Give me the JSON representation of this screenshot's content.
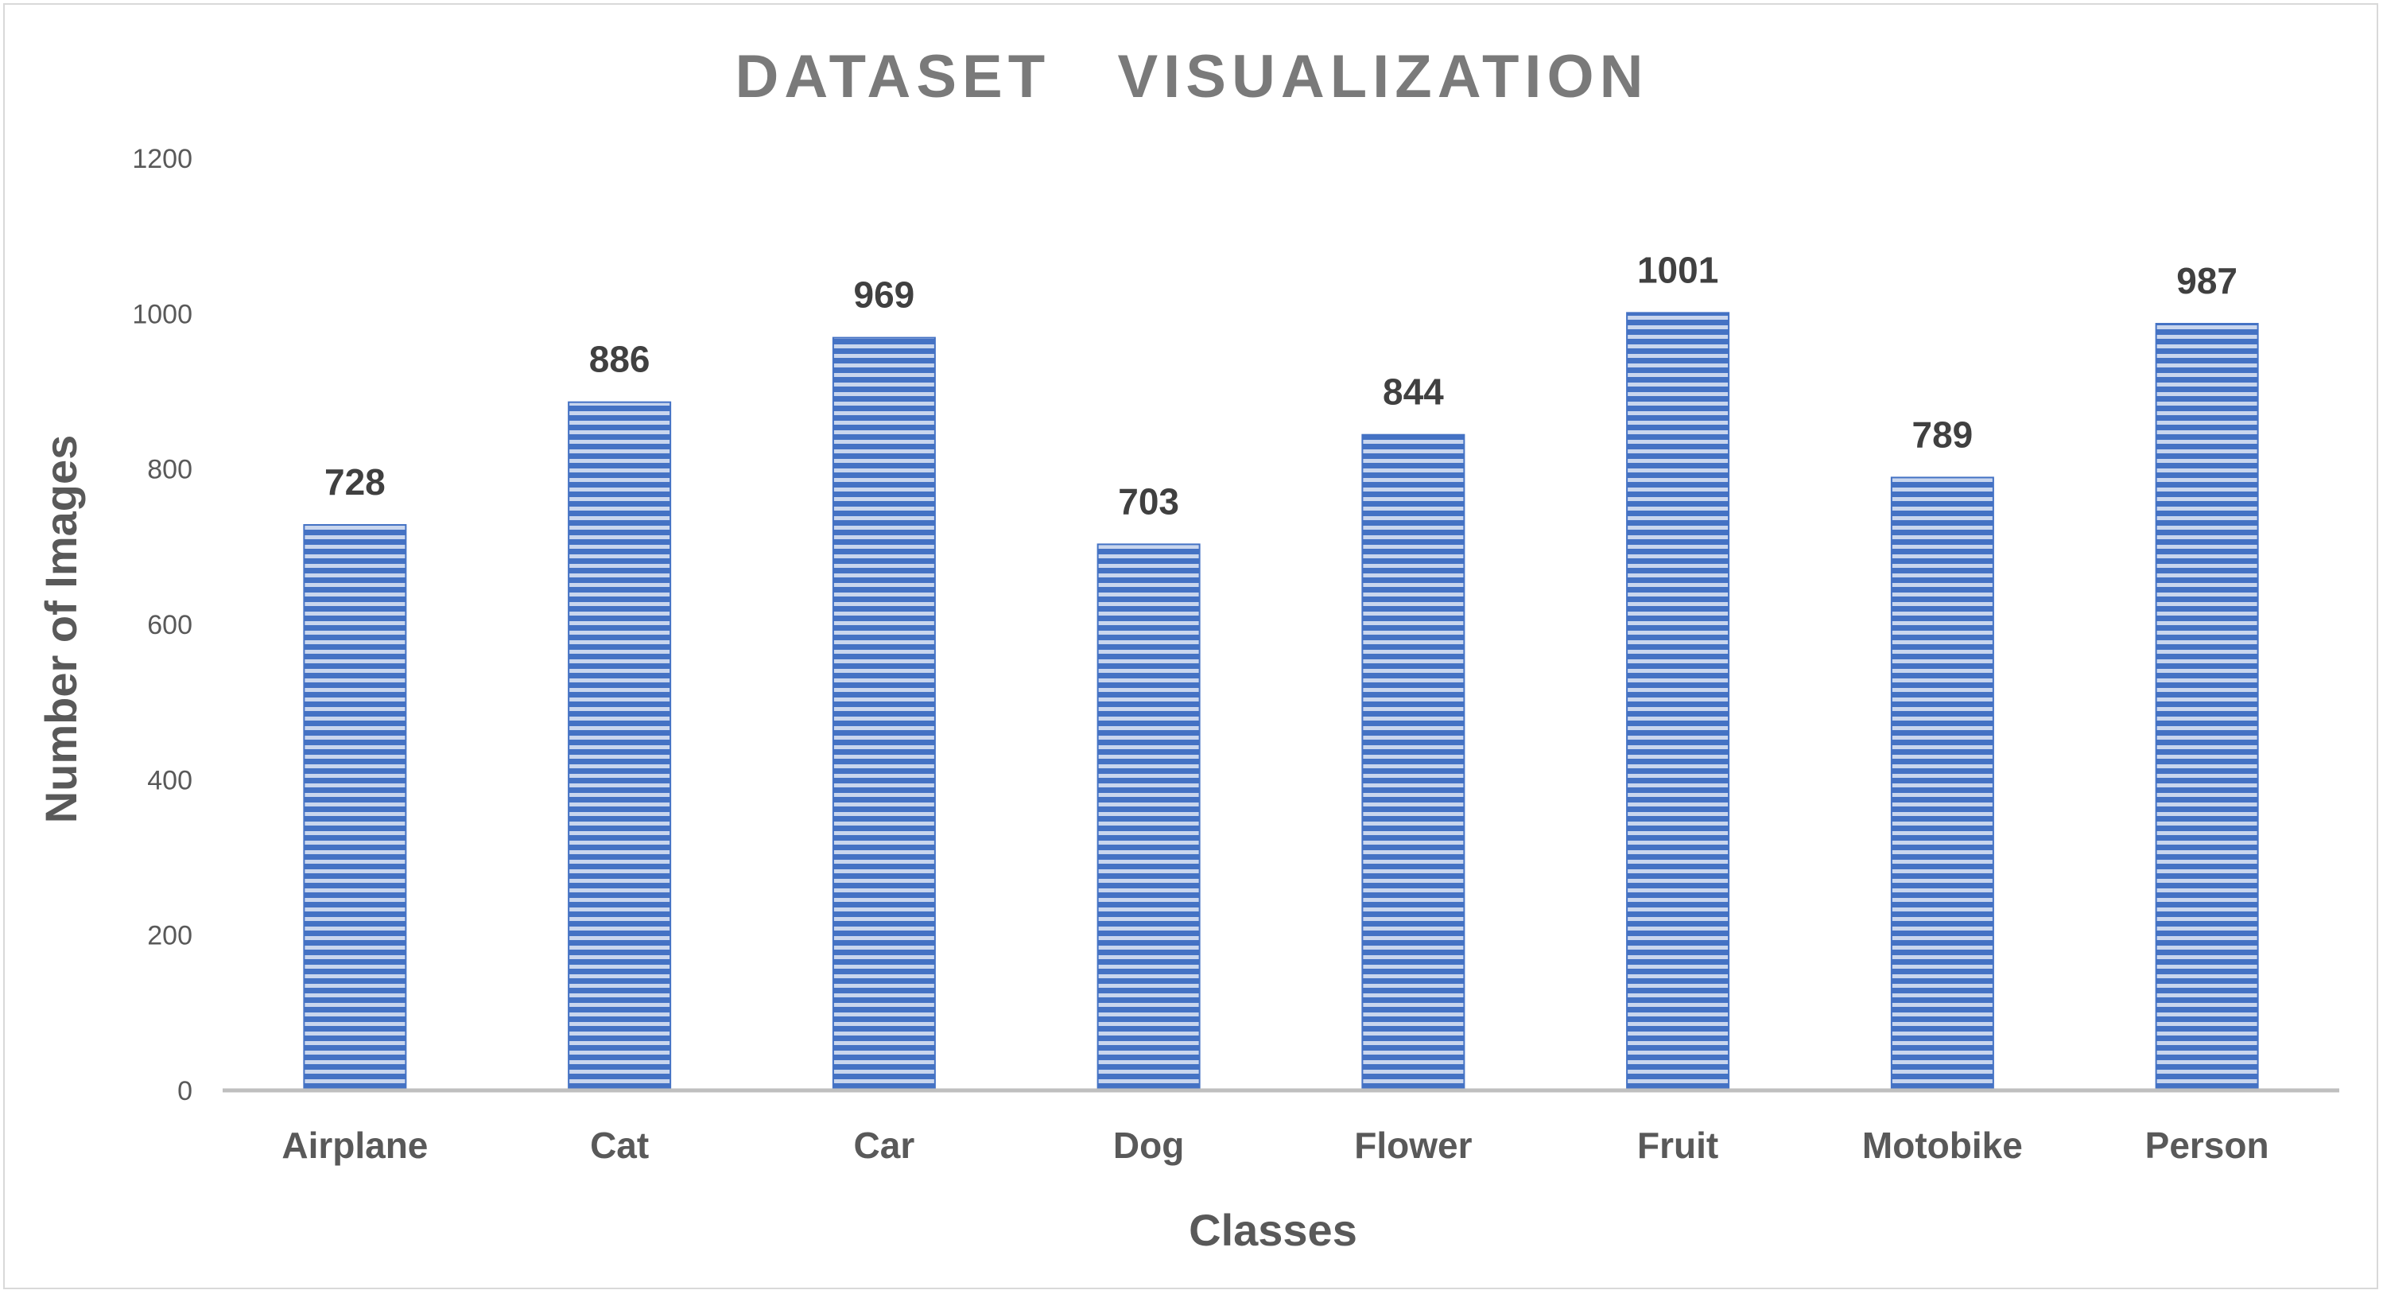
{
  "chart_data": {
    "type": "bar",
    "title": "DATASET   VISUALIZATION",
    "xlabel": "Classes",
    "ylabel": "Number of Images",
    "categories": [
      "Airplane",
      "Cat",
      "Car",
      "Dog",
      "Flower",
      "Fruit",
      "Motobike",
      "Person"
    ],
    "values": [
      728,
      886,
      969,
      703,
      844,
      1001,
      789,
      987
    ],
    "data_labels": [
      "728",
      "886",
      "969",
      "703",
      "844",
      "1001",
      "789",
      "987"
    ],
    "ylim": [
      0,
      1200
    ],
    "yticks": [
      0,
      200,
      400,
      600,
      800,
      1000,
      1200
    ],
    "ytick_labels": [
      "0",
      "200",
      "400",
      "600",
      "800",
      "1000",
      "1200"
    ],
    "grid": false,
    "legend": "none",
    "bar_fill": "horizontal-stripes",
    "colors": {
      "bar_stripe": "#4472c4",
      "bar_stripe_light": "#c9d6ee",
      "title": "#7a7a7a",
      "axis_text": "#595959",
      "data_label": "#404040",
      "axis_line": "#bfbfbf",
      "frame": "#d9d9d9"
    }
  }
}
